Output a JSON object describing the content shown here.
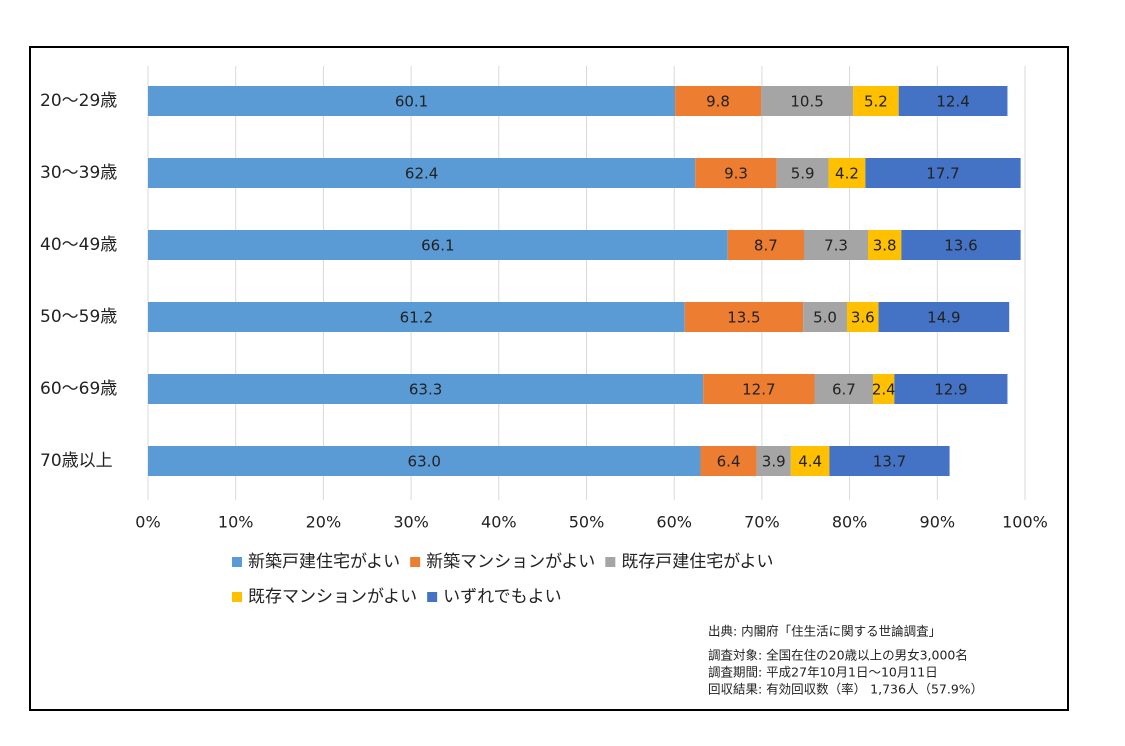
{
  "chart_data": {
    "type": "stacked-barh",
    "categories": [
      "20～29歳",
      "30～39歳",
      "40～49歳",
      "50～59歳",
      "60～69歳",
      "70歳以上"
    ],
    "series": [
      {
        "name": "新築戸建住宅がよい",
        "color": "#5b9bd5",
        "values": [
          60.1,
          62.4,
          66.1,
          61.2,
          63.3,
          63.0
        ],
        "value_labels": [
          "60.1",
          "62.4",
          "66.1",
          "61.2",
          "63.3",
          "63.0"
        ]
      },
      {
        "name": "新築マンションがよい",
        "color": "#ed7d31",
        "values": [
          9.8,
          9.3,
          8.7,
          13.5,
          12.7,
          6.4
        ],
        "value_labels": [
          "9.8",
          "9.3",
          "8.7",
          "13.5",
          "12.7",
          "6.4"
        ]
      },
      {
        "name": "既存戸建住宅がよい",
        "color": "#a5a5a5",
        "values": [
          10.5,
          5.9,
          7.3,
          5.0,
          6.7,
          3.9
        ],
        "value_labels": [
          "10.5",
          "5.9",
          "7.3",
          "5.0",
          "6.7",
          "3.9"
        ]
      },
      {
        "name": "既存マンションがよい",
        "color": "#ffc000",
        "values": [
          5.2,
          4.2,
          3.8,
          3.6,
          2.4,
          4.4
        ],
        "value_labels": [
          "5.2",
          "4.2",
          "3.8",
          "3.6",
          "2.4",
          "4.4"
        ]
      },
      {
        "name": "いずれでもよい",
        "color": "#4472c4",
        "values": [
          12.4,
          17.7,
          13.6,
          14.9,
          12.9,
          13.7
        ],
        "value_labels": [
          "12.4",
          "17.7",
          "13.6",
          "14.9",
          "12.9",
          "13.7"
        ]
      }
    ],
    "xlim": [
      0,
      100
    ],
    "xticks": [
      {
        "value": 0,
        "label": "0%"
      },
      {
        "value": 10,
        "label": "10%"
      },
      {
        "value": 20,
        "label": "20%"
      },
      {
        "value": 30,
        "label": "30%"
      },
      {
        "value": 40,
        "label": "40%"
      },
      {
        "value": 50,
        "label": "50%"
      },
      {
        "value": 60,
        "label": "60%"
      },
      {
        "value": 70,
        "label": "70%"
      },
      {
        "value": 80,
        "label": "80%"
      },
      {
        "value": 90,
        "label": "90%"
      },
      {
        "value": 100,
        "label": "100%"
      }
    ],
    "grid": true,
    "source": [
      "出典: 内閣府「住生活に関する世論調査」",
      "調査対象: 全国在住の20歳以上の男女3,000名",
      "調査期間: 平成27年10月1日～10月11日",
      "回収結果: 有効回収数（率） 1,736人（57.9%）"
    ]
  }
}
